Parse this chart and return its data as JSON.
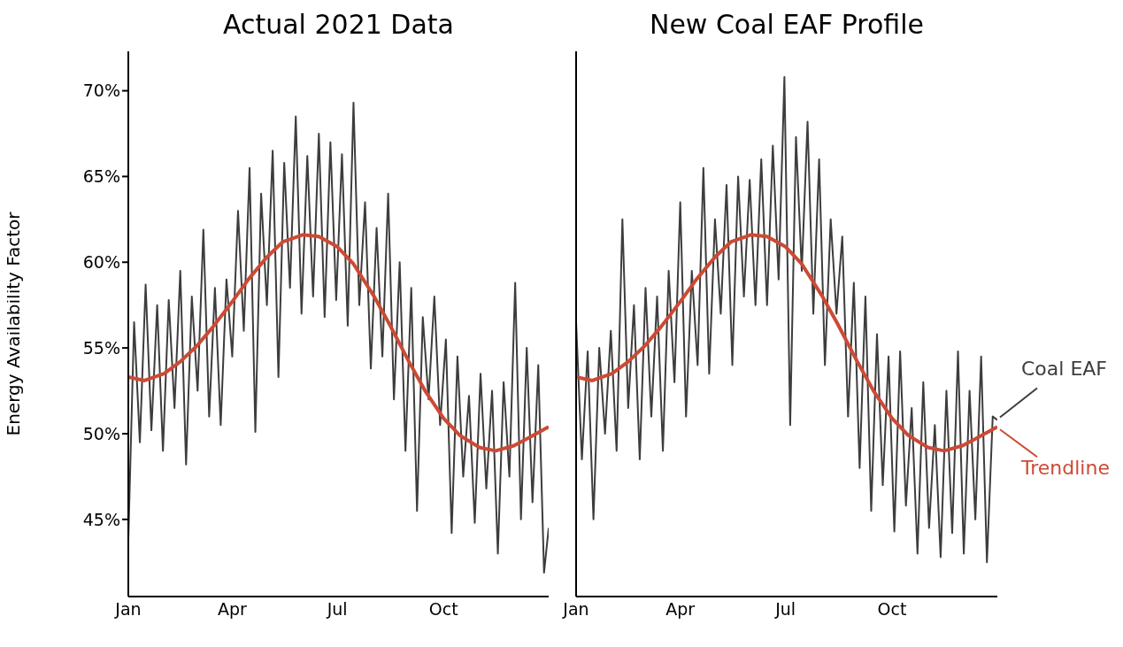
{
  "chart_data": [
    {
      "type": "line",
      "title": "Actual 2021 Data",
      "ylabel": "Energy Availability Factor",
      "xlim": [
        "2021-01-01",
        "2021-12-31"
      ],
      "xticks": [
        {
          "value": "2021-01-01",
          "label": "Jan"
        },
        {
          "value": "2021-04-01",
          "label": "Apr"
        },
        {
          "value": "2021-07-01",
          "label": "Jul"
        },
        {
          "value": "2021-10-01",
          "label": "Oct"
        }
      ],
      "ylim": [
        40.5,
        72.3
      ],
      "yticks": [
        {
          "value": 45,
          "label": "45%"
        },
        {
          "value": 50,
          "label": "50%"
        },
        {
          "value": 55,
          "label": "55%"
        },
        {
          "value": 60,
          "label": "60%"
        },
        {
          "value": 65,
          "label": "65%"
        },
        {
          "value": 70,
          "label": "70%"
        }
      ],
      "series": [
        {
          "color": "#3d3d3d",
          "x": [
            "2021-01-01",
            "2021-01-06",
            "2021-01-11",
            "2021-01-16",
            "2021-01-21",
            "2021-01-26",
            "2021-01-31",
            "2021-02-05",
            "2021-02-10",
            "2021-02-15",
            "2021-02-20",
            "2021-02-25",
            "2021-03-02",
            "2021-03-07",
            "2021-03-12",
            "2021-03-17",
            "2021-03-22",
            "2021-03-27",
            "2021-04-01",
            "2021-04-06",
            "2021-04-11",
            "2021-04-16",
            "2021-04-21",
            "2021-04-26",
            "2021-05-01",
            "2021-05-06",
            "2021-05-11",
            "2021-05-16",
            "2021-05-21",
            "2021-05-26",
            "2021-05-31",
            "2021-06-05",
            "2021-06-10",
            "2021-06-15",
            "2021-06-20",
            "2021-06-25",
            "2021-06-30",
            "2021-07-05",
            "2021-07-10",
            "2021-07-15",
            "2021-07-20",
            "2021-07-25",
            "2021-07-30",
            "2021-08-04",
            "2021-08-09",
            "2021-08-14",
            "2021-08-19",
            "2021-08-24",
            "2021-08-29",
            "2021-09-03",
            "2021-09-08",
            "2021-09-13",
            "2021-09-18",
            "2021-09-23",
            "2021-09-28",
            "2021-10-03",
            "2021-10-08",
            "2021-10-13",
            "2021-10-18",
            "2021-10-23",
            "2021-10-28",
            "2021-11-02",
            "2021-11-07",
            "2021-11-12",
            "2021-11-17",
            "2021-11-22",
            "2021-11-27",
            "2021-12-02",
            "2021-12-07",
            "2021-12-12",
            "2021-12-17",
            "2021-12-22",
            "2021-12-27",
            "2021-12-31"
          ],
          "values": [
            43.8,
            56.5,
            49.5,
            58.7,
            50.2,
            57.5,
            49.0,
            57.8,
            51.5,
            59.5,
            48.2,
            58.0,
            52.5,
            61.9,
            51.0,
            58.5,
            50.5,
            59.0,
            54.5,
            63.0,
            56.0,
            65.5,
            50.1,
            64.0,
            57.5,
            66.5,
            53.3,
            65.8,
            58.5,
            68.5,
            57.0,
            66.2,
            58.0,
            67.5,
            56.8,
            67.0,
            57.8,
            66.3,
            56.3,
            69.3,
            57.5,
            63.5,
            53.8,
            62.0,
            54.5,
            64.0,
            52.0,
            60.0,
            49.0,
            58.5,
            45.5,
            56.8,
            52.0,
            58.0,
            50.5,
            55.5,
            44.2,
            54.5,
            47.5,
            52.2,
            44.8,
            53.5,
            46.8,
            52.5,
            43.0,
            53.0,
            47.5,
            58.8,
            45.0,
            55.0,
            46.0,
            54.0,
            41.9,
            44.5
          ]
        },
        {
          "color": "#cc4a35",
          "x": [
            "2021-01-01",
            "2021-01-15",
            "2021-02-01",
            "2021-02-15",
            "2021-03-01",
            "2021-03-15",
            "2021-04-01",
            "2021-04-15",
            "2021-05-01",
            "2021-05-15",
            "2021-06-01",
            "2021-06-15",
            "2021-07-01",
            "2021-07-15",
            "2021-08-01",
            "2021-08-15",
            "2021-09-01",
            "2021-09-15",
            "2021-10-01",
            "2021-10-15",
            "2021-11-01",
            "2021-11-15",
            "2021-12-01",
            "2021-12-15",
            "2021-12-31"
          ],
          "values": [
            53.3,
            53.1,
            53.5,
            54.2,
            55.1,
            56.2,
            57.7,
            59.0,
            60.3,
            61.2,
            61.6,
            61.5,
            60.9,
            59.9,
            58.1,
            56.4,
            54.2,
            52.5,
            50.9,
            49.9,
            49.2,
            49.0,
            49.3,
            49.8,
            50.4
          ]
        }
      ]
    },
    {
      "type": "line",
      "title": "New Coal EAF Profile",
      "tick_labels": "x",
      "xlim": [
        "2021-01-01",
        "2021-12-31"
      ],
      "xticks": [
        {
          "value": "2021-01-01",
          "label": "Jan"
        },
        {
          "value": "2021-04-01",
          "label": "Apr"
        },
        {
          "value": "2021-07-01",
          "label": "Jul"
        },
        {
          "value": "2021-10-01",
          "label": "Oct"
        }
      ],
      "ylim": [
        40.5,
        72.3
      ],
      "yticks": [
        {
          "value": 45,
          "label": null
        },
        {
          "value": 50,
          "label": null
        },
        {
          "value": 55,
          "label": null
        },
        {
          "value": 60,
          "label": null
        },
        {
          "value": 65,
          "label": null
        },
        {
          "value": 70,
          "label": null
        }
      ],
      "series": [
        {
          "name": "Coal EAF",
          "color": "#3d3d3d",
          "x": [
            "2021-01-01",
            "2021-01-06",
            "2021-01-11",
            "2021-01-16",
            "2021-01-21",
            "2021-01-26",
            "2021-01-31",
            "2021-02-05",
            "2021-02-10",
            "2021-02-15",
            "2021-02-20",
            "2021-02-25",
            "2021-03-02",
            "2021-03-07",
            "2021-03-12",
            "2021-03-17",
            "2021-03-22",
            "2021-03-27",
            "2021-04-01",
            "2021-04-06",
            "2021-04-11",
            "2021-04-16",
            "2021-04-21",
            "2021-04-26",
            "2021-05-01",
            "2021-05-06",
            "2021-05-11",
            "2021-05-16",
            "2021-05-21",
            "2021-05-26",
            "2021-05-31",
            "2021-06-05",
            "2021-06-10",
            "2021-06-15",
            "2021-06-20",
            "2021-06-25",
            "2021-06-30",
            "2021-07-05",
            "2021-07-10",
            "2021-07-15",
            "2021-07-20",
            "2021-07-25",
            "2021-07-30",
            "2021-08-04",
            "2021-08-09",
            "2021-08-14",
            "2021-08-19",
            "2021-08-24",
            "2021-08-29",
            "2021-09-03",
            "2021-09-08",
            "2021-09-13",
            "2021-09-18",
            "2021-09-23",
            "2021-09-28",
            "2021-10-03",
            "2021-10-08",
            "2021-10-13",
            "2021-10-18",
            "2021-10-23",
            "2021-10-28",
            "2021-11-02",
            "2021-11-07",
            "2021-11-12",
            "2021-11-17",
            "2021-11-22",
            "2021-11-27",
            "2021-12-02",
            "2021-12-07",
            "2021-12-12",
            "2021-12-17",
            "2021-12-22",
            "2021-12-27",
            "2021-12-31"
          ],
          "values": [
            56.5,
            48.5,
            54.8,
            45.0,
            55.0,
            50.0,
            56.0,
            49.0,
            62.5,
            51.5,
            57.5,
            48.5,
            58.5,
            51.0,
            58.0,
            49.0,
            59.5,
            53.0,
            63.5,
            51.0,
            59.5,
            54.0,
            65.5,
            53.5,
            62.5,
            57.0,
            64.5,
            54.0,
            65.0,
            58.0,
            64.8,
            57.5,
            66.0,
            57.5,
            66.8,
            59.0,
            70.8,
            50.5,
            67.3,
            59.5,
            68.2,
            57.0,
            66.0,
            54.0,
            62.5,
            57.0,
            61.5,
            51.0,
            58.8,
            48.0,
            58.0,
            45.5,
            55.8,
            47.0,
            54.5,
            44.3,
            54.8,
            45.8,
            51.5,
            43.0,
            53.0,
            44.5,
            50.5,
            42.8,
            52.5,
            44.2,
            54.8,
            43.0,
            52.5,
            45.0,
            54.5,
            42.5,
            51.0,
            50.8
          ]
        },
        {
          "name": "Trendline",
          "color": "#cc4a35",
          "x": [
            "2021-01-01",
            "2021-01-15",
            "2021-02-01",
            "2021-02-15",
            "2021-03-01",
            "2021-03-15",
            "2021-04-01",
            "2021-04-15",
            "2021-05-01",
            "2021-05-15",
            "2021-06-01",
            "2021-06-15",
            "2021-07-01",
            "2021-07-15",
            "2021-08-01",
            "2021-08-15",
            "2021-09-01",
            "2021-09-15",
            "2021-10-01",
            "2021-10-15",
            "2021-11-01",
            "2021-11-15",
            "2021-12-01",
            "2021-12-15",
            "2021-12-31"
          ],
          "values": [
            53.3,
            53.1,
            53.5,
            54.2,
            55.1,
            56.2,
            57.7,
            59.0,
            60.3,
            61.2,
            61.6,
            61.5,
            60.9,
            59.9,
            58.1,
            56.4,
            54.2,
            52.5,
            50.9,
            49.9,
            49.2,
            49.0,
            49.3,
            49.8,
            50.4
          ]
        }
      ]
    }
  ]
}
